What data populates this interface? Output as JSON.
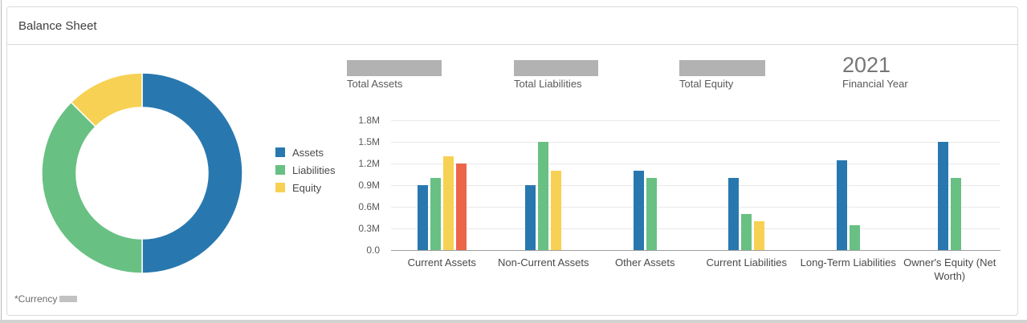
{
  "header": {
    "title": "Balance Sheet"
  },
  "kpis": [
    {
      "label": "Total Assets",
      "value": "",
      "redacted": true
    },
    {
      "label": "Total Liabilities",
      "value": "",
      "redacted": true
    },
    {
      "label": "Total Equity",
      "value": "",
      "redacted": true
    },
    {
      "label": "Financial Year",
      "value": "2021",
      "redacted": false
    }
  ],
  "footnote": {
    "text": "*Currency",
    "value_redacted": true
  },
  "colors": {
    "assets_blue": "#2878af",
    "liabilities_green": "#69c083",
    "equity_yellow": "#f7d153",
    "unlabeled_red": "#ec6549",
    "redaction_gray": "#b2b2b2",
    "gridline": "#e9e9e9",
    "axis_line": "#9e9e9e"
  },
  "chart_data": [
    {
      "type": "pie",
      "subtype": "donut",
      "title": "",
      "legend_position": "right",
      "segments": [
        {
          "label": "Assets",
          "percent": 50,
          "color": "#2878af"
        },
        {
          "label": "Liabilities",
          "percent": 37.5,
          "color": "#69c083"
        },
        {
          "label": "Equity",
          "percent": 12.5,
          "color": "#f7d153"
        }
      ]
    },
    {
      "type": "bar",
      "title": "",
      "xlabel": "",
      "ylabel": "",
      "unit": "M",
      "ylim": [
        0,
        1.8
      ],
      "grid": true,
      "ticks": [
        {
          "v": 0,
          "label": "0.0"
        },
        {
          "v": 0.3,
          "label": "0.3M"
        },
        {
          "v": 0.6,
          "label": "0.6M"
        },
        {
          "v": 0.9,
          "label": "0.9M"
        },
        {
          "v": 1.2,
          "label": "1.2M"
        },
        {
          "v": 1.5,
          "label": "1.5M"
        },
        {
          "v": 1.8,
          "label": "1.8M"
        }
      ],
      "legend": [
        {
          "label": "Assets",
          "color": "#2878af"
        },
        {
          "label": "Liabilities",
          "color": "#69c083"
        },
        {
          "label": "Equity",
          "color": "#f7d153"
        }
      ],
      "categories": [
        "Current Assets",
        "Non-Current Assets",
        "Other Assets",
        "Current Liabilities",
        "Long-Term Liabilities",
        "Owner's Equity (Net Worth)"
      ],
      "groups": [
        {
          "category": "Current Assets",
          "bars": [
            {
              "series": "Assets",
              "color": "#2878af",
              "value_m": 0.9
            },
            {
              "series": "Liabilities",
              "color": "#69c083",
              "value_m": 1.0
            },
            {
              "series": "Equity",
              "color": "#f7d153",
              "value_m": 1.3
            },
            {
              "series": "unlabeled",
              "color": "#ec6549",
              "value_m": 1.2
            }
          ]
        },
        {
          "category": "Non-Current Assets",
          "bars": [
            {
              "series": "Assets",
              "color": "#2878af",
              "value_m": 0.9
            },
            {
              "series": "Liabilities",
              "color": "#69c083",
              "value_m": 1.5
            },
            {
              "series": "Equity",
              "color": "#f7d153",
              "value_m": 1.1
            }
          ]
        },
        {
          "category": "Other Assets",
          "bars": [
            {
              "series": "Assets",
              "color": "#2878af",
              "value_m": 1.1
            },
            {
              "series": "Liabilities",
              "color": "#69c083",
              "value_m": 1.0
            }
          ]
        },
        {
          "category": "Current Liabilities",
          "bars": [
            {
              "series": "Assets",
              "color": "#2878af",
              "value_m": 1.0
            },
            {
              "series": "Liabilities",
              "color": "#69c083",
              "value_m": 0.5
            },
            {
              "series": "Equity",
              "color": "#f7d153",
              "value_m": 0.4
            }
          ]
        },
        {
          "category": "Long-Term Liabilities",
          "bars": [
            {
              "series": "Assets",
              "color": "#2878af",
              "value_m": 1.25
            },
            {
              "series": "Liabilities",
              "color": "#69c083",
              "value_m": 0.35
            }
          ]
        },
        {
          "category": "Owner's Equity (Net Worth)",
          "bars": [
            {
              "series": "Assets",
              "color": "#2878af",
              "value_m": 1.5
            },
            {
              "series": "Liabilities",
              "color": "#69c083",
              "value_m": 1.0
            }
          ]
        }
      ]
    }
  ]
}
